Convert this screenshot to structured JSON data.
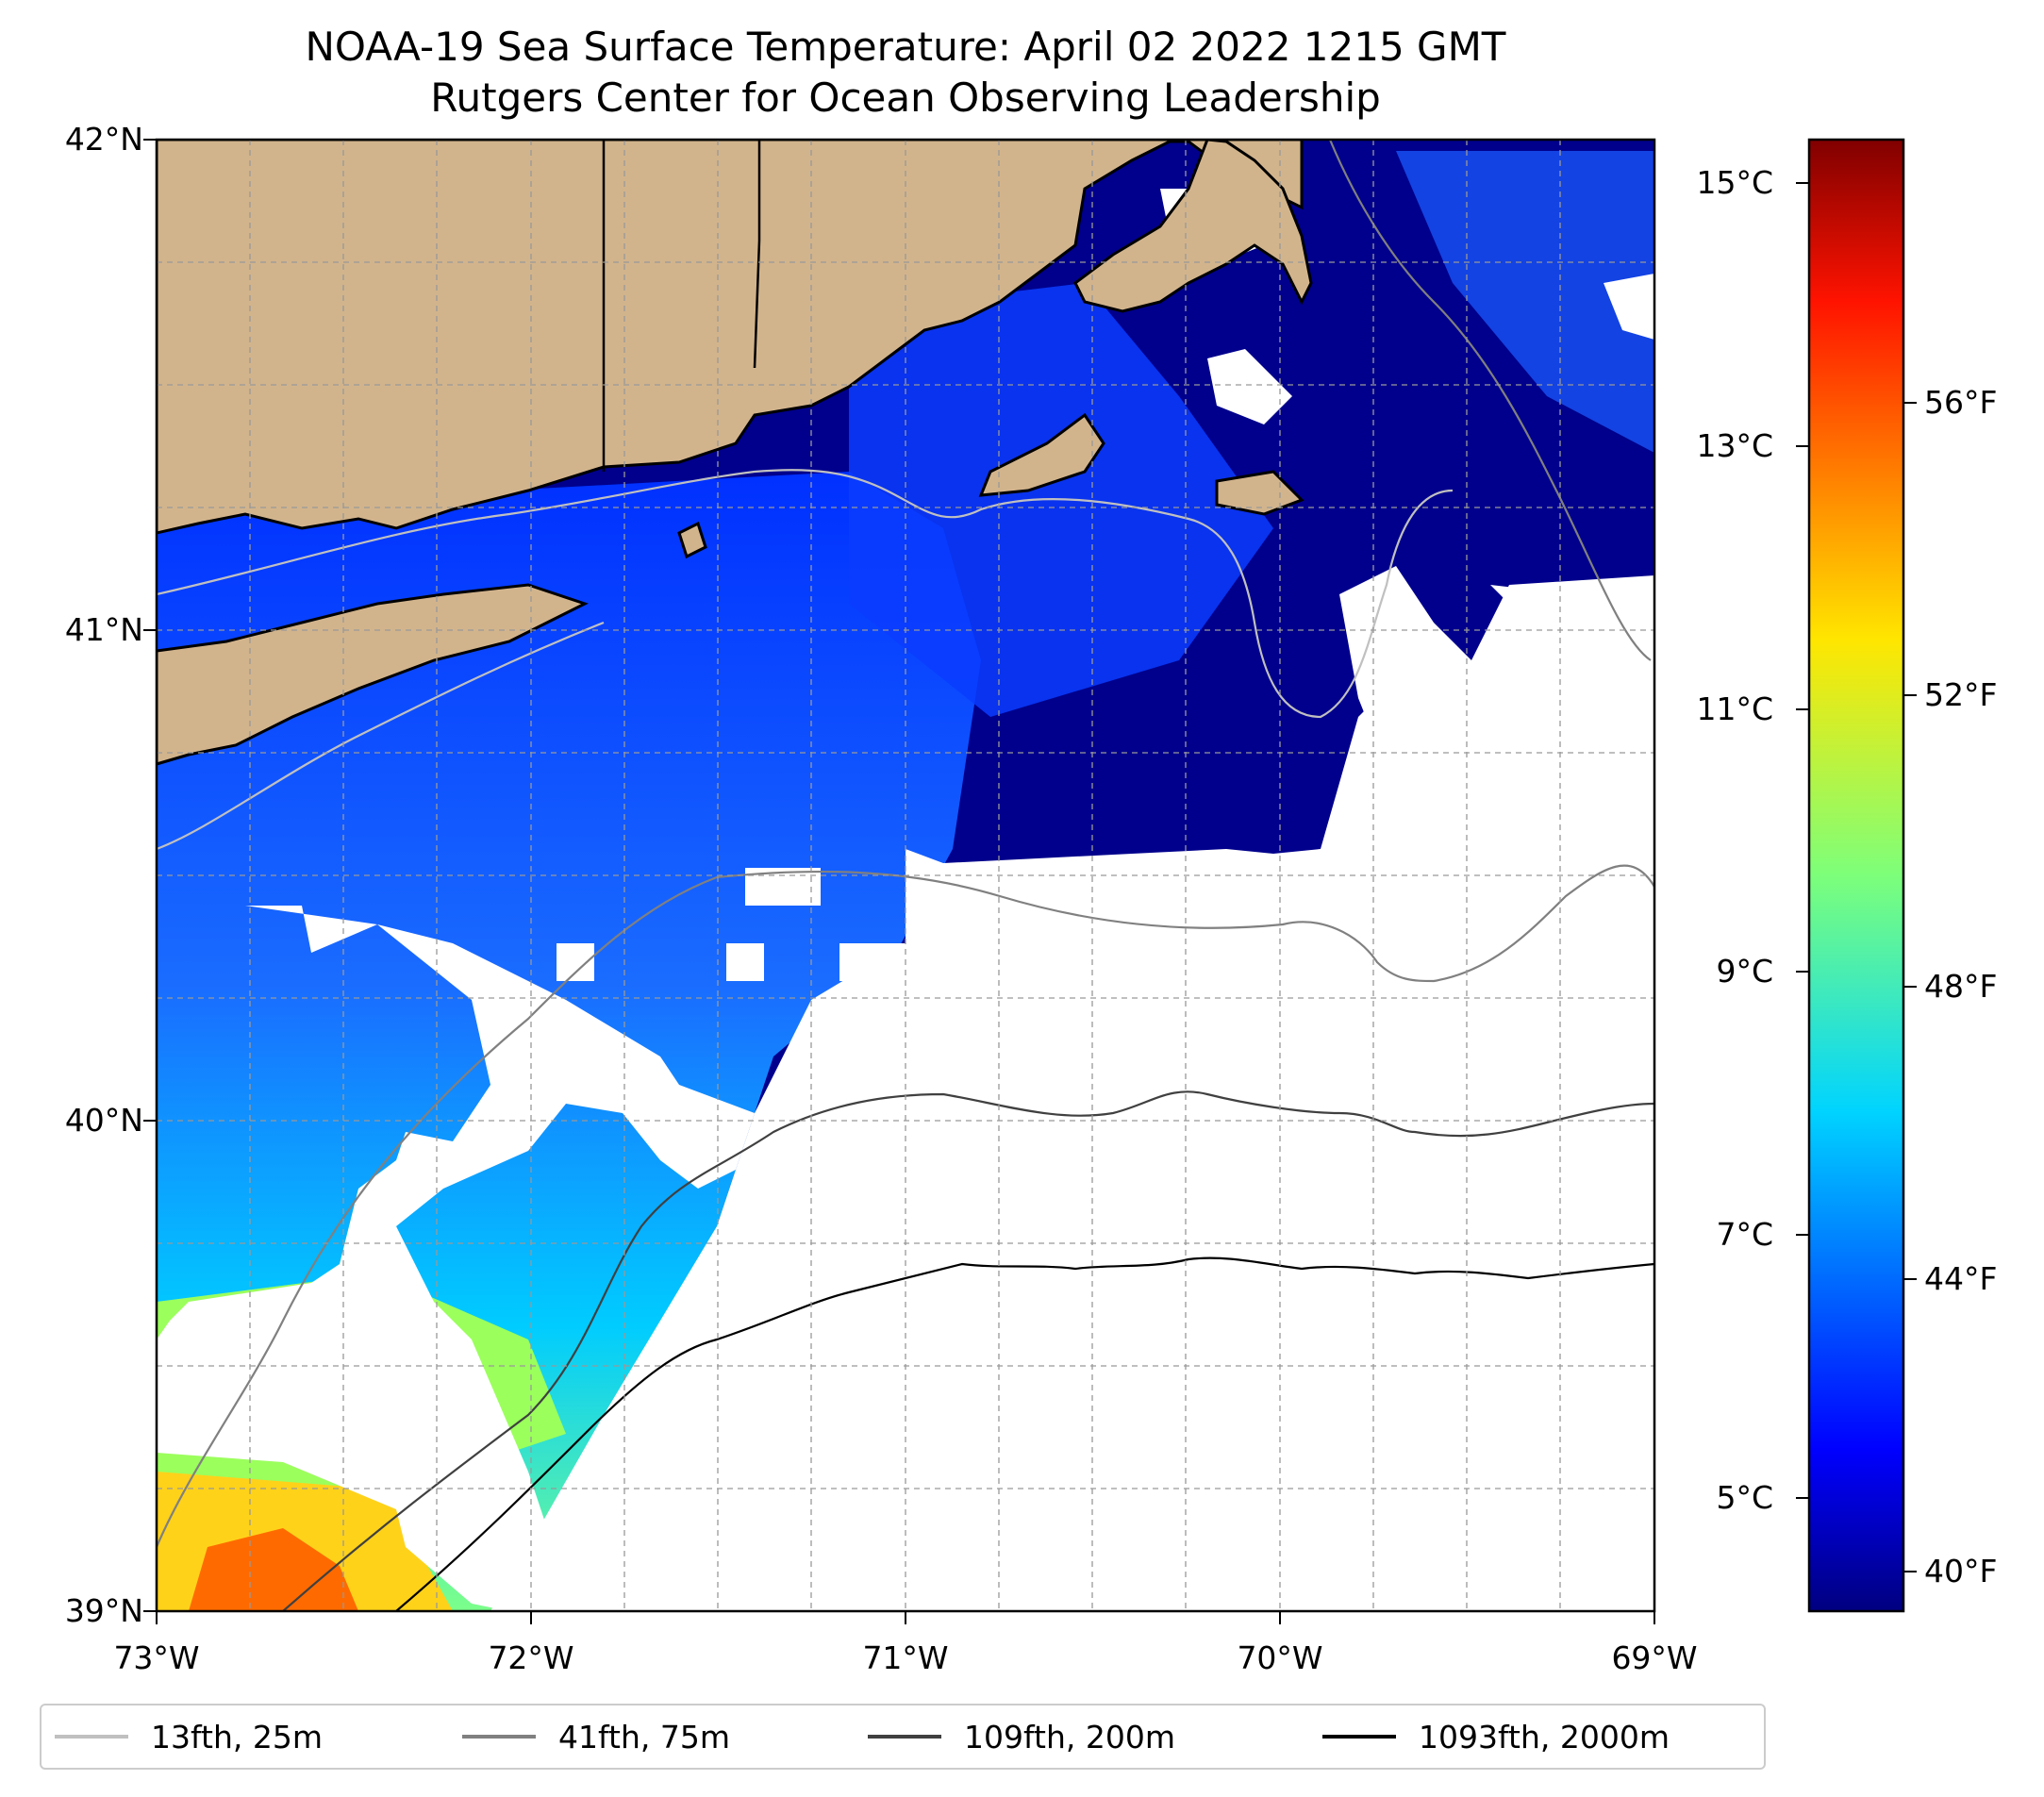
{
  "title": {
    "line1": "NOAA-19 Sea Surface Temperature: April 02 2022 1215 GMT",
    "line2": "Rutgers Center for Ocean Observing Leadership"
  },
  "map": {
    "lat_ticks": [
      "42°N",
      "41°N",
      "40°N",
      "39°N"
    ],
    "lon_ticks": [
      "73°W",
      "72°W",
      "71°W",
      "70°W",
      "69°W"
    ],
    "lat_range": [
      39,
      42
    ],
    "lon_range": [
      -73,
      -69
    ],
    "land_color": "#d2b48c",
    "cloud_mask_color": "#ffffff",
    "gridlines": true
  },
  "colorbar": {
    "colormap": "jet",
    "celsius_ticks": [
      "15°C",
      "13°C",
      "11°C",
      "9°C",
      "7°C",
      "5°C"
    ],
    "fahrenheit_ticks": [
      "56°F",
      "52°F",
      "48°F",
      "44°F",
      "40°F"
    ],
    "range_c": [
      4.0,
      15.3
    ]
  },
  "legend": {
    "items": [
      {
        "label": "13fth, 25m",
        "color": "#c0c0c0"
      },
      {
        "label": "41fth, 75m",
        "color": "#808080"
      },
      {
        "label": "109fth, 200m",
        "color": "#404040"
      },
      {
        "label": "1093fth, 2000m",
        "color": "#000000"
      }
    ]
  }
}
